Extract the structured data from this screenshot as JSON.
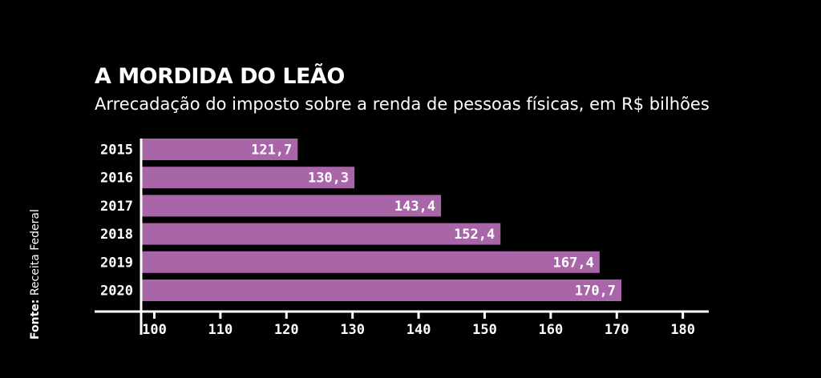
{
  "chart_data": {
    "type": "bar",
    "orientation": "horizontal",
    "title": "A MORDIDA DO LEÃO",
    "subtitle": "Arrecadação do imposto sobre a renda de pessoas físicas, em R$ bilhões",
    "categories": [
      "2015",
      "2016",
      "2017",
      "2018",
      "2019",
      "2020"
    ],
    "values": [
      121.7,
      130.3,
      143.4,
      152.4,
      167.4,
      170.7
    ],
    "value_labels": [
      "121,7",
      "130,3",
      "143,4",
      "152,4",
      "167,4",
      "170,7"
    ],
    "xlim": [
      98,
      180
    ],
    "xticks": [
      100,
      110,
      120,
      130,
      140,
      150,
      160,
      170,
      180
    ],
    "xlabel": "",
    "ylabel": "",
    "grid": false,
    "bar_color": "#a865a8",
    "background_color": "#000000",
    "text_color": "#ffffff"
  },
  "source": {
    "label": "Fonte:",
    "text": "Receita Federal"
  }
}
